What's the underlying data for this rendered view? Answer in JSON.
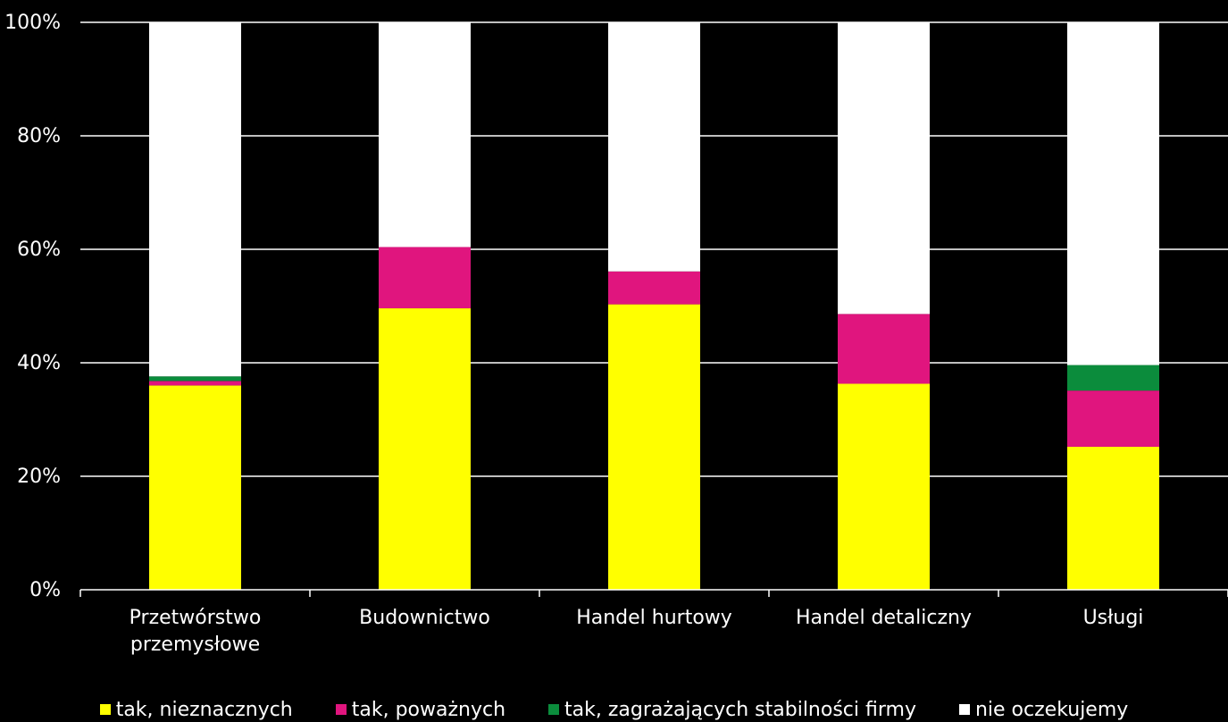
{
  "chart_data": {
    "type": "bar",
    "stacked": true,
    "percent": true,
    "categories": [
      "Przetwórstwo przemysłowe",
      "Budownictwo",
      "Handel hurtowy",
      "Handel detaliczny",
      "Usługi"
    ],
    "category_lines": [
      [
        "Przetwórstwo",
        "przemysłowe"
      ],
      [
        "Budownictwo"
      ],
      [
        "Handel hurtowy"
      ],
      [
        "Handel detaliczny"
      ],
      [
        "Usługi"
      ]
    ],
    "series": [
      {
        "name": "tak, nieznacznych",
        "color": "#ffff00",
        "values": [
          36.0,
          49.6,
          50.3,
          36.3,
          25.2
        ]
      },
      {
        "name": "tak, poważnych",
        "color": "#e0157e",
        "values": [
          0.8,
          10.8,
          5.8,
          12.3,
          9.9
        ]
      },
      {
        "name": "tak, zagrażających stabilności firmy",
        "color": "#0b8c3c",
        "values": [
          0.8,
          0.0,
          0.0,
          0.0,
          4.5
        ]
      },
      {
        "name": "nie oczekujemy",
        "color": "#ffffff",
        "values": [
          62.4,
          39.6,
          43.9,
          51.4,
          60.4
        ]
      }
    ],
    "y_ticks": [
      "0%",
      "20%",
      "40%",
      "60%",
      "80%",
      "100%"
    ],
    "ylim": [
      0,
      100
    ],
    "grid": true,
    "legend_position": "bottom"
  }
}
